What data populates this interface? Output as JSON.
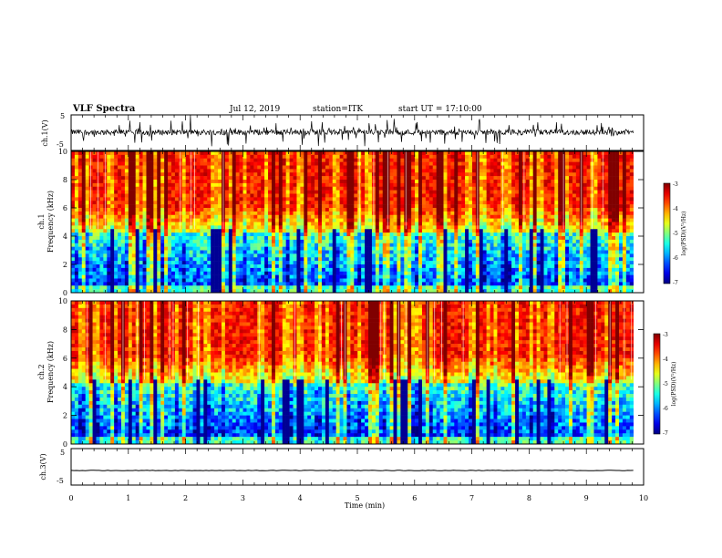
{
  "header": {
    "title": "VLF Spectra",
    "date": "Jul 12, 2019",
    "station": "station=ITK",
    "start": "start UT = 17:10:00"
  },
  "chart_data": [
    {
      "type": "line",
      "name_label": "ch.1(V)",
      "ylabel": "ch.1(V)",
      "ylim": [
        -5,
        5
      ],
      "yticks": [
        "5",
        "-5"
      ],
      "xlim": [
        0,
        10
      ],
      "x_extent": [
        0,
        9.82
      ],
      "description_values": "noisy waveform centered near 0 V, bursts up to about +-5 V"
    },
    {
      "type": "heatmap",
      "ylabel": "Frequency (kHz)",
      "channel_label": "ch.1",
      "ylim": [
        0,
        10
      ],
      "yticks": [
        "0",
        "2",
        "4",
        "6",
        "8",
        "10"
      ],
      "xlim": [
        0,
        10
      ],
      "x_extent": [
        0,
        9.82
      ],
      "colorbar": {
        "label": "log(PSD)(V²/Hz)",
        "range": [
          -7,
          -3
        ],
        "ticks": [
          "-3",
          "-4",
          "-5",
          "-6",
          "-7"
        ]
      }
    },
    {
      "type": "heatmap",
      "ylabel": "Frequency (kHz)",
      "channel_label": "ch.2",
      "ylim": [
        0,
        10
      ],
      "yticks": [
        "0",
        "2",
        "4",
        "6",
        "8",
        "10"
      ],
      "xlim": [
        0,
        10
      ],
      "x_extent": [
        0,
        9.82
      ],
      "colorbar": {
        "label": "log(PSD)(V²/Hz)",
        "range": [
          -7,
          -3
        ],
        "ticks": [
          "-3",
          "-4",
          "-5",
          "-6",
          "-7"
        ]
      }
    },
    {
      "type": "line",
      "ylabel": "ch.3(V)",
      "ylim": [
        -5,
        5
      ],
      "yticks": [
        "5",
        "-5"
      ],
      "xlim": [
        0,
        10
      ],
      "x_extent": [
        0,
        9.82
      ],
      "xlabel": "Time (min)",
      "xticks": [
        "0",
        "1",
        "2",
        "3",
        "4",
        "5",
        "6",
        "7",
        "8",
        "9",
        "10"
      ]
    }
  ],
  "colors": {
    "spectrum_high": "#ff2a1a",
    "spectrum_mid": "#22ee44",
    "spectrum_low": "#001a9e",
    "trace": "#000000"
  }
}
